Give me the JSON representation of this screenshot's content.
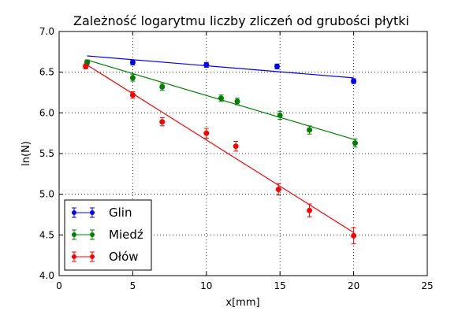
{
  "chart_data": {
    "type": "scatter",
    "title": "Zależność logarytmu liczby zliczeń od grubości płytki",
    "xlabel": "x[mm]",
    "ylabel": "ln(N)",
    "xlim": [
      0,
      25
    ],
    "ylim": [
      4.0,
      7.0
    ],
    "xticks": [
      "0",
      "5",
      "10",
      "15",
      "20",
      "25"
    ],
    "yticks": [
      "4.0",
      "4.5",
      "5.0",
      "5.5",
      "6.0",
      "6.5",
      "7.0"
    ],
    "grid": true,
    "legend_position": "bottom-left",
    "series": [
      {
        "name": "Glin",
        "color": "#0000ff",
        "points": [
          {
            "x": 1.9,
            "y": 6.62,
            "err": 0.03
          },
          {
            "x": 5.0,
            "y": 6.62,
            "err": 0.03
          },
          {
            "x": 10.0,
            "y": 6.59,
            "err": 0.03
          },
          {
            "x": 14.8,
            "y": 6.57,
            "err": 0.03
          },
          {
            "x": 20.0,
            "y": 6.39,
            "err": 0.03
          }
        ],
        "fit": {
          "x": [
            1.9,
            20.0
          ],
          "y": [
            6.7,
            6.43
          ]
        }
      },
      {
        "name": "Miedź",
        "color": "#008000",
        "points": [
          {
            "x": 1.9,
            "y": 6.62,
            "err": 0.03
          },
          {
            "x": 5.0,
            "y": 6.43,
            "err": 0.04
          },
          {
            "x": 7.0,
            "y": 6.32,
            "err": 0.04
          },
          {
            "x": 11.0,
            "y": 6.18,
            "err": 0.04
          },
          {
            "x": 12.1,
            "y": 6.14,
            "err": 0.04
          },
          {
            "x": 15.0,
            "y": 5.97,
            "err": 0.05
          },
          {
            "x": 17.0,
            "y": 5.79,
            "err": 0.05
          },
          {
            "x": 20.1,
            "y": 5.63,
            "err": 0.05
          }
        ],
        "fit": {
          "x": [
            1.9,
            20.1
          ],
          "y": [
            6.65,
            5.67
          ]
        }
      },
      {
        "name": "Ołów",
        "color": "#ff0000",
        "points": [
          {
            "x": 1.8,
            "y": 6.57,
            "err": 0.03
          },
          {
            "x": 5.0,
            "y": 6.22,
            "err": 0.04
          },
          {
            "x": 7.0,
            "y": 5.89,
            "err": 0.05
          },
          {
            "x": 10.0,
            "y": 5.75,
            "err": 0.06
          },
          {
            "x": 12.0,
            "y": 5.59,
            "err": 0.06
          },
          {
            "x": 14.9,
            "y": 5.06,
            "err": 0.07
          },
          {
            "x": 17.0,
            "y": 4.8,
            "err": 0.08
          },
          {
            "x": 20.0,
            "y": 4.49,
            "err": 0.1
          }
        ],
        "fit": {
          "x": [
            1.8,
            20.0
          ],
          "y": [
            6.6,
            4.53
          ]
        }
      }
    ]
  }
}
